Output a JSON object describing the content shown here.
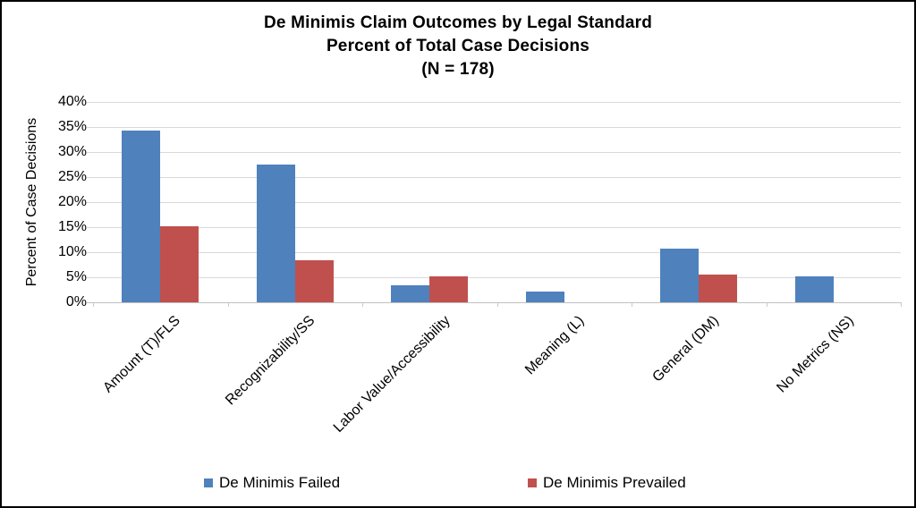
{
  "chart_data": {
    "type": "bar",
    "title_lines": [
      "De Minimis Claim Outcomes by Legal Standard",
      "Percent of Total Case Decisions",
      "(N = 178)"
    ],
    "ylabel": "Percent of Case Decisions",
    "xlabel": "",
    "categories": [
      "Amount (T)/FLS",
      "Recognizability/SS",
      "Labor Value/Accessibility",
      "Meaning (L)",
      "General (DM)",
      "No Metrics (NS)"
    ],
    "series": [
      {
        "name": "De Minimis Failed",
        "color": "#4F81BD",
        "values": [
          34.3,
          27.5,
          3.4,
          2.2,
          10.7,
          5.1
        ]
      },
      {
        "name": "De Minimis Prevailed",
        "color": "#C0504D",
        "values": [
          15.2,
          8.4,
          5.1,
          0.0,
          5.6,
          0.0
        ]
      }
    ],
    "ylim": [
      0,
      40
    ],
    "ytick_step": 5,
    "ytick_labels": [
      "0%",
      "5%",
      "10%",
      "15%",
      "20%",
      "25%",
      "30%",
      "35%",
      "40%"
    ],
    "grid": true,
    "legend_position": "bottom",
    "colors": {
      "gridline": "#D9D9D9",
      "axis_line": "#C0C0C0",
      "text": "#000000",
      "background": "#FFFFFF",
      "border": "#000000"
    }
  }
}
